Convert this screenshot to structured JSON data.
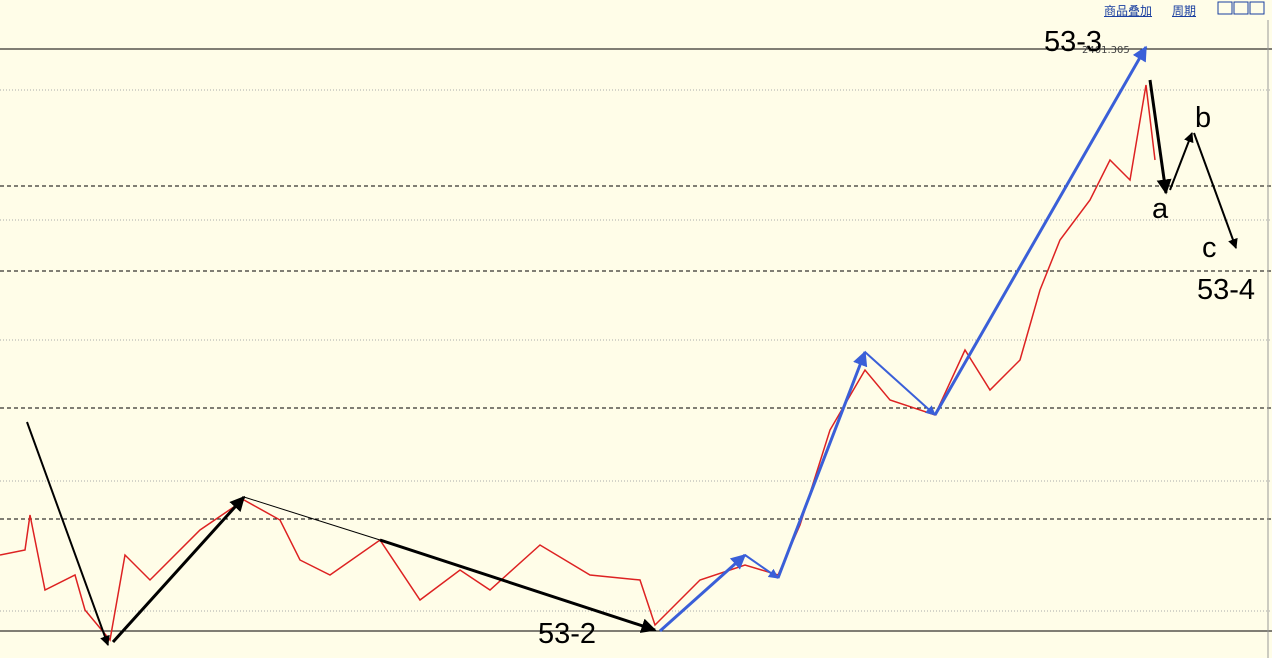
{
  "toolbar": {
    "overlay": "商品叠加",
    "period": "周期"
  },
  "chart": {
    "high_label": "2401.305",
    "annotations": {
      "wave_53_3": "53-3",
      "wave_53_2": "53-2",
      "wave_53_4": "53-4",
      "a": "a",
      "b": "b",
      "c": "c"
    }
  }
}
